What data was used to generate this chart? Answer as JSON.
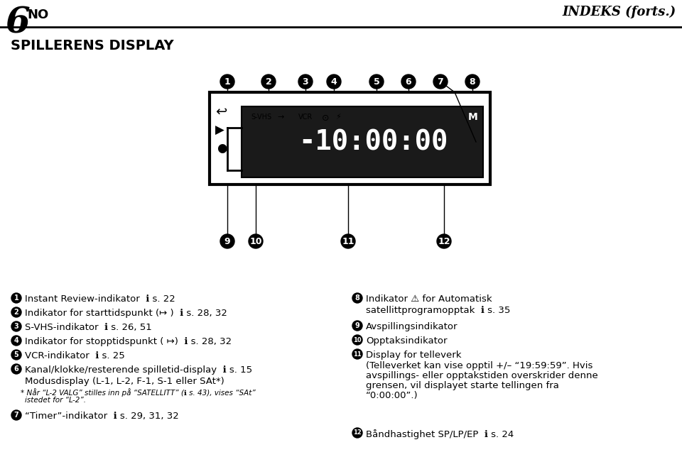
{
  "title_number": "6",
  "title_no": "NO",
  "title_right": "INDEKS (forts.)",
  "section_title": "SPILLERENS DISPLAY",
  "bg_color": "#ffffff",
  "text_color": "#000000",
  "display_bg": "#1a1a1a",
  "display_text": "#e8e8e8",
  "left_items": [
    {
      "num": 1,
      "text": "Instant Review-indikator ℹ s. 22"
    },
    {
      "num": 2,
      "text": "Indikator for starttidspunkt (↦ ) ℹ s. 28, 32"
    },
    {
      "num": 3,
      "text": "S-VHS-indikator ℹ s. 26, 51"
    },
    {
      "num": 4,
      "text": "Indikator for stopptidspunkt ( ↦) ℹ s. 28, 32"
    },
    {
      "num": 5,
      "text": "VCR-indikator ℹ s. 25"
    },
    {
      "num": 6,
      "text": "Kanal/klokke/resterende spilletid-display ℹ s. 15\nModusdisplay (L-1, L-2, F-1, S-1 eller SAt*)\n* Når “L-2 VALG” stilles inn på “SATELLITT” (ℹ s. 43), vises “SAt”\n  istedet for “L-2”."
    },
    {
      "num": 7,
      "text": "“Timer”-indikator ℹ s. 29, 31, 32"
    }
  ],
  "right_items": [
    {
      "num": 8,
      "text": "Indikator ⚠ for Automatisk\nsellittprogramopptak ℹ s. 35"
    },
    {
      "num": 9,
      "text": "Avspillingsindikator"
    },
    {
      "num": 10,
      "text": "Opptaksindikator"
    },
    {
      "num": 11,
      "text": "Display for telleverk\n(Telleverket kan vise opptil +/– “19:59:59”. Hvis\navspillings- eller opptakstiden overskrider denne\ngrensen, vil displayet starte tellingen fra\n“0:00:00”.)"
    },
    {
      "num": 12,
      "text": "Båndhastighet SP/LP/EP ℹ s. 24"
    }
  ]
}
